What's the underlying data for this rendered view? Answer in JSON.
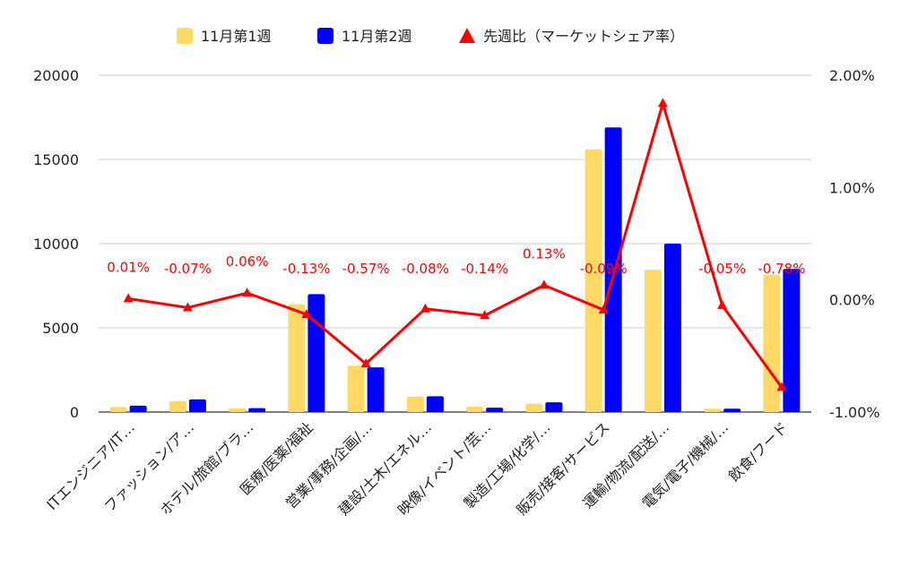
{
  "chart_data": {
    "type": "bar+line",
    "title": "",
    "legend": {
      "position": "top",
      "entries": [
        {
          "label": "11月第1週",
          "color": "#ffd966",
          "marker": "square"
        },
        {
          "label": "11月第2週",
          "color": "#0000ff",
          "marker": "square"
        },
        {
          "label": "先週比（マーケットシェア率）",
          "color": "#ff0000",
          "marker": "triangle"
        }
      ]
    },
    "categories": [
      "ITエンジニア/IT…",
      "ファッション/ア…",
      "ホテル/旅館/ブラ…",
      "医療/医薬/福祉",
      "営業/事務/企画/…",
      "建設/土木/エネル…",
      "映像/イベント/芸…",
      "製造/工場/化学/…",
      "販売/接客/サービス",
      "運輸/物流/配送/…",
      "電気/電子/機械/…",
      "飲食/フード"
    ],
    "series": [
      {
        "name": "11月第1週",
        "axis": "left",
        "kind": "bar",
        "color": "#ffd966",
        "values": [
          300,
          650,
          220,
          6400,
          2750,
          920,
          320,
          500,
          15600,
          8450,
          200,
          8150
        ]
      },
      {
        "name": "11月第2週",
        "axis": "left",
        "kind": "bar",
        "color": "#0000ff",
        "values": [
          380,
          750,
          230,
          7000,
          2650,
          940,
          260,
          580,
          16900,
          10000,
          200,
          8500
        ]
      },
      {
        "name": "先週比（マーケットシェア率）",
        "axis": "right",
        "kind": "line",
        "color": "#ff0000",
        "values": [
          0.0001,
          -0.0007,
          0.0006,
          -0.0013,
          -0.0057,
          -0.0008,
          -0.0014,
          0.0013,
          -0.0009,
          0.0175,
          -0.0005,
          -0.0078
        ],
        "labels": [
          "0.01%",
          "-0.07%",
          "0.06%",
          "-0.13%",
          "-0.57%",
          "-0.08%",
          "-0.14%",
          "0.13%",
          "-0.09%",
          "",
          "-0.05%",
          "-0.78%"
        ]
      }
    ],
    "y_left": {
      "range": [
        0,
        20000
      ],
      "ticks": [
        0,
        5000,
        10000,
        15000,
        20000
      ],
      "tick_labels": [
        "0",
        "5000",
        "10000",
        "15000",
        "20000"
      ]
    },
    "y_right": {
      "range": [
        -0.01,
        0.02
      ],
      "ticks": [
        -0.01,
        0,
        0.01,
        0.02
      ],
      "tick_labels": [
        "-1.00%",
        "0.00%",
        "1.00%",
        "2.00%"
      ]
    },
    "grid": true
  }
}
